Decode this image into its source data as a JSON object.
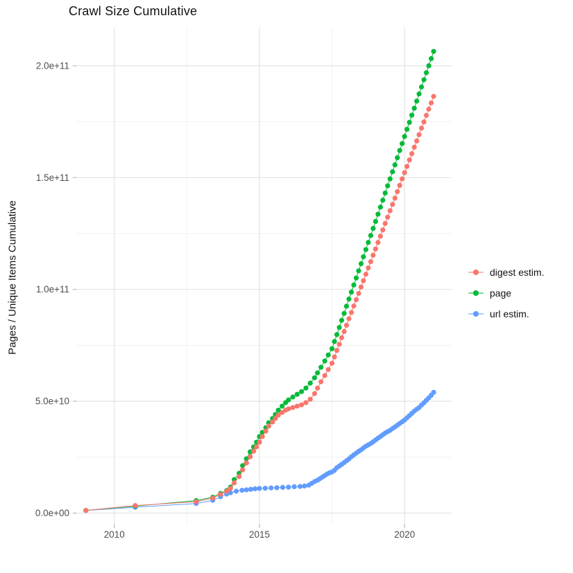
{
  "title": "Crawl Size Cumulative",
  "y_axis": {
    "label": "Pages / Unique Items Cumulative",
    "ticks": [
      {
        "value_e9": 0,
        "label": "0.0e+00"
      },
      {
        "value_e9": 50,
        "label": "5.0e+10"
      },
      {
        "value_e9": 100,
        "label": "1.0e+11"
      },
      {
        "value_e9": 150,
        "label": "1.5e+11"
      },
      {
        "value_e9": 200,
        "label": "2.0e+11"
      }
    ],
    "minor_e9": [
      25,
      75,
      125,
      175
    ]
  },
  "x_axis": {
    "ticks": [
      {
        "value": 2010,
        "label": "2010"
      },
      {
        "value": 2015,
        "label": "2015"
      },
      {
        "value": 2020,
        "label": "2020"
      }
    ],
    "minor": [
      2012.5,
      2017.5
    ]
  },
  "style": {
    "grid_major_color": "#e3e3e3",
    "grid_minor_color": "#f1f1f1",
    "tick_color": "#b3b3b3",
    "tick_label_color": "#4d4d4d",
    "point_radius": 3.6
  },
  "legend": {
    "items": [
      {
        "label": "digest estim.",
        "color": "#F8766D"
      },
      {
        "label": "page",
        "color": "#00BA38"
      },
      {
        "label": "url estim.",
        "color": "#619CFF"
      }
    ]
  },
  "chart_data": {
    "type": "scatter",
    "title": "Crawl Size Cumulative",
    "xlabel": "",
    "ylabel": "Pages / Unique Items Cumulative",
    "x_unit": "year (decimal)",
    "y_unit": "count, stored as value × 1e9",
    "xlim": [
      2008.69,
      2021.62
    ],
    "ylim_e9": [
      -5.1,
      217.0
    ],
    "grid": true,
    "legend_position": "right",
    "series": [
      {
        "name": "url estim.",
        "color": "#619CFF",
        "points": [
          [
            2009.02,
            1.2
          ],
          [
            2010.72,
            2.6
          ],
          [
            2012.82,
            4.3
          ],
          [
            2013.39,
            5.7
          ],
          [
            2013.66,
            7.3
          ],
          [
            2013.87,
            8.5
          ],
          [
            2014.0,
            9.1
          ],
          [
            2014.2,
            9.8
          ],
          [
            2014.4,
            10.2
          ],
          [
            2014.55,
            10.4
          ],
          [
            2014.7,
            10.65
          ],
          [
            2014.85,
            10.85
          ],
          [
            2015.0,
            11.0
          ],
          [
            2015.2,
            11.1
          ],
          [
            2015.4,
            11.25
          ],
          [
            2015.6,
            11.35
          ],
          [
            2015.8,
            11.5
          ],
          [
            2016.0,
            11.6
          ],
          [
            2016.2,
            11.8
          ],
          [
            2016.4,
            11.9
          ],
          [
            2016.55,
            12.1
          ],
          [
            2016.7,
            12.5
          ],
          [
            2016.8,
            13.3
          ],
          [
            2016.9,
            14.1
          ],
          [
            2017.0,
            14.7
          ],
          [
            2017.083,
            15.4
          ],
          [
            2017.167,
            16.1
          ],
          [
            2017.25,
            16.8
          ],
          [
            2017.333,
            17.5
          ],
          [
            2017.417,
            18.0
          ],
          [
            2017.5,
            18.4
          ],
          [
            2017.583,
            19.1
          ],
          [
            2017.667,
            20.3
          ],
          [
            2017.75,
            21.0
          ],
          [
            2017.833,
            21.8
          ],
          [
            2017.917,
            22.6
          ],
          [
            2018.0,
            23.4
          ],
          [
            2018.083,
            24.2
          ],
          [
            2018.167,
            25.2
          ],
          [
            2018.25,
            26.0
          ],
          [
            2018.333,
            26.8
          ],
          [
            2018.417,
            27.6
          ],
          [
            2018.5,
            28.3
          ],
          [
            2018.583,
            29.1
          ],
          [
            2018.667,
            29.9
          ],
          [
            2018.75,
            30.5
          ],
          [
            2018.833,
            31.1
          ],
          [
            2018.917,
            31.9
          ],
          [
            2019.0,
            32.7
          ],
          [
            2019.083,
            33.5
          ],
          [
            2019.167,
            34.2
          ],
          [
            2019.25,
            35.0
          ],
          [
            2019.333,
            35.8
          ],
          [
            2019.417,
            36.4
          ],
          [
            2019.5,
            37.0
          ],
          [
            2019.583,
            37.8
          ],
          [
            2019.667,
            38.5
          ],
          [
            2019.75,
            39.3
          ],
          [
            2019.833,
            40.1
          ],
          [
            2019.917,
            40.8
          ],
          [
            2020.0,
            41.6
          ],
          [
            2020.083,
            42.6
          ],
          [
            2020.167,
            43.6
          ],
          [
            2020.25,
            44.6
          ],
          [
            2020.333,
            45.6
          ],
          [
            2020.417,
            46.4
          ],
          [
            2020.5,
            47.2
          ],
          [
            2020.583,
            48.3
          ],
          [
            2020.667,
            49.3
          ],
          [
            2020.75,
            50.4
          ],
          [
            2020.833,
            51.5
          ],
          [
            2020.917,
            52.7
          ],
          [
            2021.0,
            54.0
          ]
        ]
      },
      {
        "name": "page",
        "color": "#00BA38",
        "points": [
          [
            2009.02,
            1.2
          ],
          [
            2010.72,
            3.1
          ],
          [
            2012.82,
            5.6
          ],
          [
            2013.39,
            7.1
          ],
          [
            2013.66,
            8.8
          ],
          [
            2013.87,
            10.1
          ],
          [
            2014.0,
            11.6
          ],
          [
            2014.13,
            15.0
          ],
          [
            2014.3,
            17.8
          ],
          [
            2014.42,
            21.2
          ],
          [
            2014.55,
            24.3
          ],
          [
            2014.68,
            27.4
          ],
          [
            2014.8,
            29.6
          ],
          [
            2014.9,
            31.7
          ],
          [
            2015.0,
            34.2
          ],
          [
            2015.1,
            36.1
          ],
          [
            2015.22,
            38.2
          ],
          [
            2015.32,
            40.4
          ],
          [
            2015.45,
            42.3
          ],
          [
            2015.55,
            44.1
          ],
          [
            2015.65,
            46.0
          ],
          [
            2015.78,
            47.8
          ],
          [
            2015.9,
            49.4
          ],
          [
            2016.0,
            50.6
          ],
          [
            2016.15,
            51.9
          ],
          [
            2016.3,
            53.1
          ],
          [
            2016.45,
            54.3
          ],
          [
            2016.6,
            55.9
          ],
          [
            2016.75,
            58.1
          ],
          [
            2016.9,
            60.5
          ],
          [
            2017.0,
            62.7
          ],
          [
            2017.12,
            65.2
          ],
          [
            2017.25,
            68.0
          ],
          [
            2017.37,
            70.7
          ],
          [
            2017.5,
            73.5
          ],
          [
            2017.583,
            76.7
          ],
          [
            2017.667,
            79.8
          ],
          [
            2017.75,
            83.0
          ],
          [
            2017.833,
            86.2
          ],
          [
            2017.917,
            89.3
          ],
          [
            2018.0,
            92.5
          ],
          [
            2018.083,
            95.7
          ],
          [
            2018.167,
            98.8
          ],
          [
            2018.25,
            102.0
          ],
          [
            2018.333,
            105.1
          ],
          [
            2018.417,
            108.3
          ],
          [
            2018.5,
            111.5
          ],
          [
            2018.583,
            114.6
          ],
          [
            2018.667,
            117.8
          ],
          [
            2018.75,
            121.0
          ],
          [
            2018.833,
            124.1
          ],
          [
            2018.917,
            127.3
          ],
          [
            2019.0,
            130.4
          ],
          [
            2019.083,
            133.6
          ],
          [
            2019.167,
            136.8
          ],
          [
            2019.25,
            139.9
          ],
          [
            2019.333,
            143.1
          ],
          [
            2019.417,
            146.3
          ],
          [
            2019.5,
            149.4
          ],
          [
            2019.583,
            152.6
          ],
          [
            2019.667,
            155.7
          ],
          [
            2019.75,
            158.9
          ],
          [
            2019.833,
            162.1
          ],
          [
            2019.917,
            165.2
          ],
          [
            2020.0,
            168.4
          ],
          [
            2020.083,
            171.6
          ],
          [
            2020.167,
            174.7
          ],
          [
            2020.25,
            177.9
          ],
          [
            2020.333,
            181.0
          ],
          [
            2020.417,
            184.2
          ],
          [
            2020.5,
            187.4
          ],
          [
            2020.583,
            190.5
          ],
          [
            2020.667,
            193.7
          ],
          [
            2020.75,
            196.9
          ],
          [
            2020.833,
            200.0
          ],
          [
            2020.917,
            203.2
          ],
          [
            2021.0,
            206.4
          ]
        ]
      },
      {
        "name": "digest estim.",
        "color": "#F8766D",
        "points": [
          [
            2009.02,
            1.2
          ],
          [
            2010.72,
            3.4
          ],
          [
            2012.82,
            5.1
          ],
          [
            2013.39,
            6.7
          ],
          [
            2013.66,
            8.4
          ],
          [
            2013.87,
            9.8
          ],
          [
            2014.0,
            11.0
          ],
          [
            2014.13,
            13.5
          ],
          [
            2014.3,
            16.3
          ],
          [
            2014.42,
            19.3
          ],
          [
            2014.55,
            22.4
          ],
          [
            2014.68,
            25.2
          ],
          [
            2014.8,
            27.7
          ],
          [
            2014.9,
            29.6
          ],
          [
            2015.0,
            31.7
          ],
          [
            2015.1,
            34.2
          ],
          [
            2015.22,
            36.7
          ],
          [
            2015.32,
            38.9
          ],
          [
            2015.45,
            40.7
          ],
          [
            2015.55,
            42.3
          ],
          [
            2015.65,
            43.8
          ],
          [
            2015.78,
            45.0
          ],
          [
            2015.9,
            46.0
          ],
          [
            2016.0,
            46.6
          ],
          [
            2016.15,
            47.2
          ],
          [
            2016.3,
            47.8
          ],
          [
            2016.45,
            48.4
          ],
          [
            2016.6,
            49.4
          ],
          [
            2016.75,
            50.9
          ],
          [
            2016.9,
            53.4
          ],
          [
            2017.0,
            55.9
          ],
          [
            2017.12,
            58.7
          ],
          [
            2017.25,
            61.5
          ],
          [
            2017.37,
            64.2
          ],
          [
            2017.5,
            67.0
          ],
          [
            2017.583,
            69.8
          ],
          [
            2017.667,
            72.7
          ],
          [
            2017.75,
            75.5
          ],
          [
            2017.833,
            78.4
          ],
          [
            2017.917,
            81.2
          ],
          [
            2018.0,
            84.0
          ],
          [
            2018.083,
            86.9
          ],
          [
            2018.167,
            89.7
          ],
          [
            2018.25,
            92.6
          ],
          [
            2018.333,
            95.4
          ],
          [
            2018.417,
            98.2
          ],
          [
            2018.5,
            101.1
          ],
          [
            2018.583,
            103.9
          ],
          [
            2018.667,
            106.8
          ],
          [
            2018.75,
            109.6
          ],
          [
            2018.833,
            112.4
          ],
          [
            2018.917,
            115.3
          ],
          [
            2019.0,
            118.1
          ],
          [
            2019.083,
            121.0
          ],
          [
            2019.167,
            123.8
          ],
          [
            2019.25,
            126.6
          ],
          [
            2019.333,
            129.5
          ],
          [
            2019.417,
            132.3
          ],
          [
            2019.5,
            135.2
          ],
          [
            2019.583,
            138.0
          ],
          [
            2019.667,
            140.8
          ],
          [
            2019.75,
            143.7
          ],
          [
            2019.833,
            146.5
          ],
          [
            2019.917,
            149.4
          ],
          [
            2020.0,
            152.2
          ],
          [
            2020.083,
            155.0
          ],
          [
            2020.167,
            157.9
          ],
          [
            2020.25,
            160.7
          ],
          [
            2020.333,
            163.6
          ],
          [
            2020.417,
            166.4
          ],
          [
            2020.5,
            169.2
          ],
          [
            2020.583,
            172.1
          ],
          [
            2020.667,
            174.9
          ],
          [
            2020.75,
            177.8
          ],
          [
            2020.833,
            180.6
          ],
          [
            2020.917,
            183.4
          ],
          [
            2021.0,
            186.3
          ]
        ]
      }
    ]
  }
}
